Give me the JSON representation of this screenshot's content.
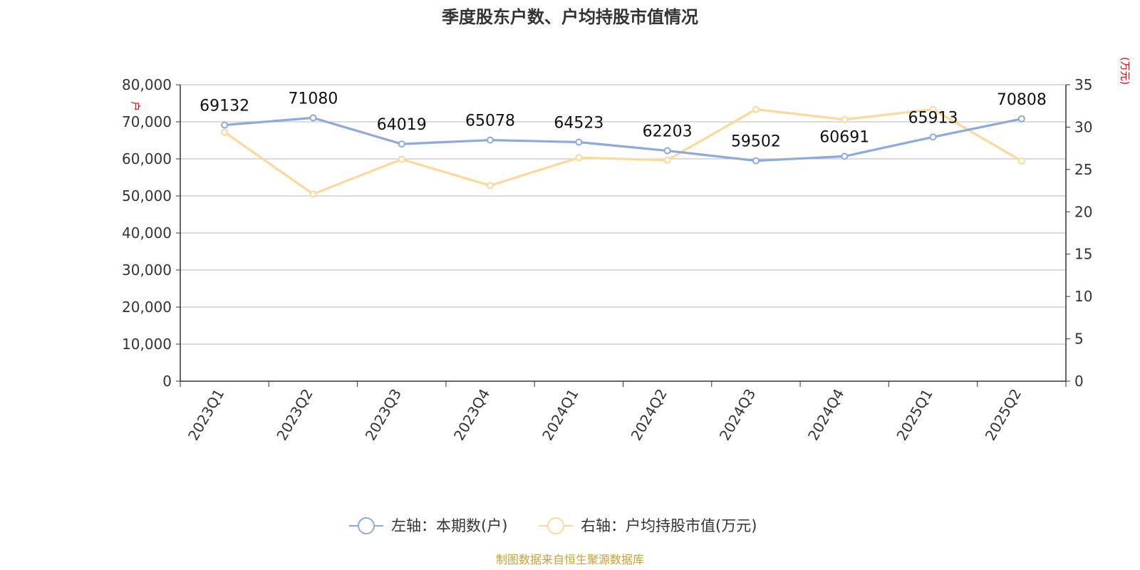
{
  "chart_data": {
    "type": "line",
    "title": "季度股东户数、户均持股市值情况",
    "categories": [
      "2023Q1",
      "2023Q2",
      "2023Q3",
      "2023Q4",
      "2024Q1",
      "2024Q2",
      "2024Q3",
      "2024Q4",
      "2025Q1",
      "2025Q2"
    ],
    "left_axis": {
      "unit": "户",
      "ylim": [
        0,
        80000
      ],
      "ticks": [
        "0",
        "10,000",
        "20,000",
        "30,000",
        "40,000",
        "50,000",
        "60,000",
        "70,000",
        "80,000"
      ]
    },
    "right_axis": {
      "unit": "(万元)",
      "ylim": [
        0,
        35
      ],
      "ticks": [
        "0",
        "5",
        "10",
        "15",
        "20",
        "25",
        "30",
        "35"
      ]
    },
    "series": [
      {
        "name": "左轴：本期数(户)",
        "axis": "left",
        "color": "#8eaadb",
        "values": [
          69132,
          71080,
          64019,
          65078,
          64523,
          62203,
          59502,
          60691,
          65913,
          70808
        ],
        "labels": [
          "69132",
          "71080",
          "64019",
          "65078",
          "64523",
          "62203",
          "59502",
          "60691",
          "65913",
          "70808"
        ]
      },
      {
        "name": "右轴：户均持股市值(万元)",
        "axis": "right",
        "color": "#fcd89b",
        "values": [
          29.4,
          22.1,
          26.2,
          23.1,
          26.4,
          26.1,
          32.1,
          30.9,
          32.1,
          26.0
        ]
      }
    ],
    "grid": true,
    "legend_position": "bottom-center"
  },
  "source": "制图数据来自恒生聚源数据库"
}
